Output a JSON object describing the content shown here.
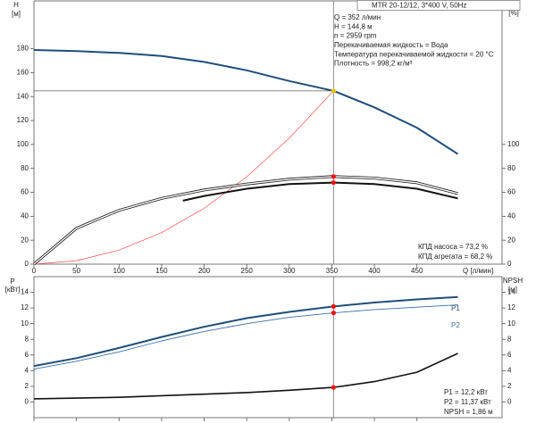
{
  "chart_data": [
    {
      "type": "line",
      "header": "MTR 20-12/12, 3*400 V, 50Hz",
      "info": [
        "Q = 352 л/мин",
        "H = 144,8 м",
        "n = 2959 rpm",
        "Перекачиваемая жидкость = Вода",
        "Температура перекачиваемой жидкости = 20 °C",
        "Плотность = 998,2 кг/м³"
      ],
      "y_label": [
        "H",
        "[м]"
      ],
      "y2_label": [
        "eta",
        "[%]"
      ],
      "x_label": "Q [л/мин]",
      "xlim": [
        0,
        550
      ],
      "xticks": [
        0,
        50,
        100,
        150,
        200,
        250,
        300,
        350,
        400,
        450
      ],
      "ylim": [
        0,
        220
      ],
      "yticks": [
        0,
        20,
        40,
        60,
        80,
        100,
        120,
        140,
        160,
        180
      ],
      "y2lim": [
        0,
        220
      ],
      "y2ticks": [
        0,
        20,
        40,
        60,
        80,
        100
      ],
      "series": [
        {
          "color": "#1f4e79",
          "width": 2,
          "x": [
            0,
            50,
            100,
            150,
            200,
            250,
            300,
            352,
            400,
            450,
            498
          ],
          "values": [
            179,
            178,
            176.5,
            174,
            169,
            162,
            153,
            144.8,
            131,
            114,
            92
          ]
        },
        {
          "color": "#ff4d4d",
          "width": 0.7,
          "x": [
            0,
            50,
            100,
            150,
            200,
            250,
            300,
            352
          ],
          "values": [
            0,
            2.9,
            11.7,
            26.3,
            46.7,
            73,
            105.2,
            144.8
          ]
        },
        {
          "color": "#111111",
          "width": 3,
          "hollow": true,
          "axis": "y2",
          "x": [
            0,
            50,
            100,
            150,
            200,
            250,
            300,
            352,
            400,
            450,
            498
          ],
          "values": [
            0,
            30,
            45,
            55,
            62,
            67,
            71,
            73.2,
            72,
            68,
            59
          ]
        },
        {
          "color": "#111111",
          "width": 2,
          "axis": "y2",
          "x": [
            175,
            200,
            250,
            300,
            352,
            400,
            450,
            498
          ],
          "values": [
            53,
            57,
            63,
            67,
            68.2,
            67,
            63,
            55
          ]
        }
      ],
      "markers": [
        {
          "x": 352,
          "y": 144.8,
          "color": "#f5c518"
        },
        {
          "x": 352,
          "y": 73.2,
          "color": "#ee1111",
          "axis": "y2"
        },
        {
          "x": 352,
          "y": 68.2,
          "color": "#ee1111",
          "axis": "y2"
        }
      ],
      "annotations": [
        "КПД насоса = 73,2 %",
        "КПД агрегата = 68,2 %"
      ]
    },
    {
      "type": "line",
      "y_label": [
        "P",
        "[кВт]"
      ],
      "y2_label": [
        "NPSH",
        "[м]"
      ],
      "xlim": [
        0,
        550
      ],
      "xticks": [
        0,
        50,
        100,
        150,
        200,
        250,
        300,
        350,
        400,
        450
      ],
      "ylim": [
        -2,
        16
      ],
      "yticks": [
        0,
        2,
        4,
        6,
        8,
        10,
        12,
        14
      ],
      "y2lim": [
        -2,
        16
      ],
      "y2ticks": [
        0,
        2,
        4,
        6,
        8,
        10,
        12,
        14
      ],
      "series": [
        {
          "label": "P1",
          "color": "#1f4e79",
          "width": 2,
          "x": [
            0,
            50,
            100,
            150,
            200,
            250,
            300,
            352,
            400,
            450,
            498
          ],
          "values": [
            4.6,
            5.6,
            6.9,
            8.3,
            9.6,
            10.7,
            11.5,
            12.2,
            12.7,
            13.1,
            13.4
          ]
        },
        {
          "label": "P2",
          "color": "#3a6ea5",
          "width": 0.9,
          "x": [
            0,
            50,
            100,
            150,
            200,
            250,
            300,
            352,
            400,
            450,
            498
          ],
          "values": [
            4.2,
            5.2,
            6.4,
            7.8,
            9,
            10,
            10.8,
            11.37,
            11.8,
            12.1,
            12.4
          ]
        },
        {
          "color": "#111111",
          "width": 1.6,
          "axis": "y2",
          "x": [
            0,
            50,
            100,
            150,
            200,
            250,
            300,
            352,
            400,
            450,
            498
          ],
          "values": [
            0.4,
            0.5,
            0.6,
            0.8,
            1,
            1.2,
            1.5,
            1.86,
            2.6,
            3.8,
            6.2
          ]
        }
      ],
      "markers": [
        {
          "x": 352,
          "y": 12.2,
          "color": "#ee1111"
        },
        {
          "x": 352,
          "y": 11.37,
          "color": "#ee1111"
        },
        {
          "x": 352,
          "y": 1.86,
          "color": "#ee1111",
          "axis": "y2"
        }
      ],
      "annotations": [
        "P1 = 12,2 кВт",
        "P2 = 11,37 кВт",
        "NPSH = 1,86 м"
      ]
    }
  ]
}
